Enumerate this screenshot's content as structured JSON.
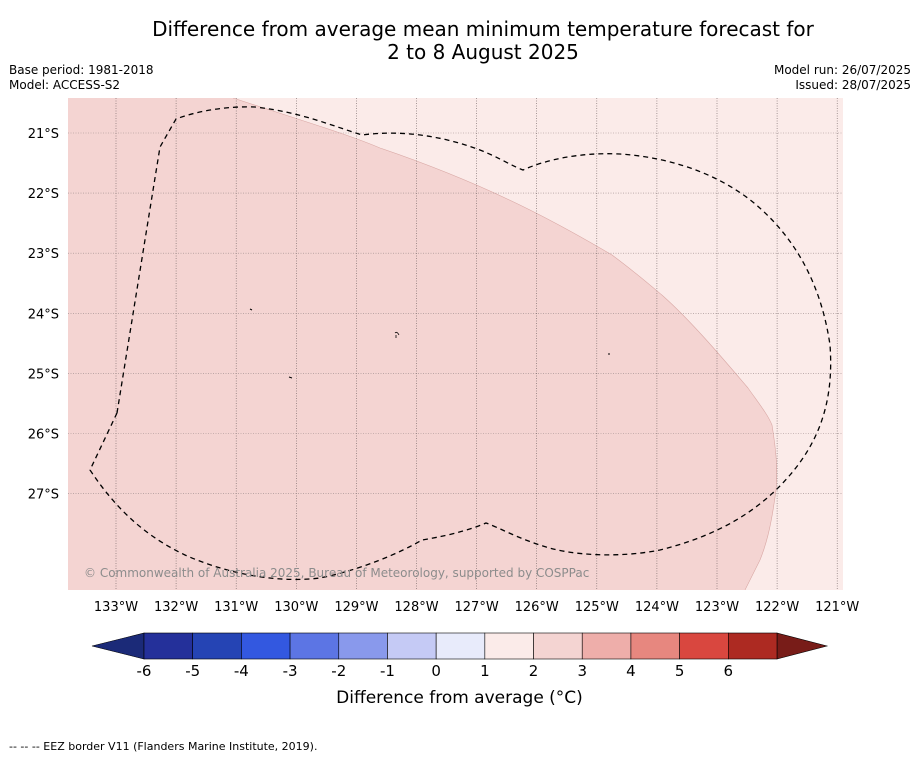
{
  "header": {
    "title_line1": "Difference from average mean minimum temperature forecast for",
    "title_line2": "2 to 8 August 2025",
    "base_period": "Base period: 1981-2018",
    "model": "Model: ACCESS-S2",
    "model_run": "Model run: 26/07/2025",
    "issued": "Issued: 28/07/2025"
  },
  "map": {
    "lat_labels": [
      "21°S",
      "22°S",
      "23°S",
      "24°S",
      "25°S",
      "26°S",
      "27°S"
    ],
    "lon_labels": [
      "133°W",
      "132°W",
      "131°W",
      "130°W",
      "129°W",
      "128°W",
      "127°W",
      "126°W",
      "125°W",
      "124°W",
      "123°W",
      "122°W",
      "121°W"
    ],
    "copyright": "© Commonwealth of Australia 2025, Bureau of Meteorology, supported by COSPPac",
    "colors": {
      "anomaly_0_1": "#fbebe9",
      "anomaly_1_2": "#f4d4d2",
      "eez_border": "#000000"
    }
  },
  "colorbar": {
    "ticks": [
      "-6",
      "-5",
      "-4",
      "-3",
      "-2",
      "-1",
      "0",
      "1",
      "2",
      "3",
      "4",
      "5",
      "6"
    ],
    "colors": [
      "#24309a",
      "#2544b4",
      "#3358e0",
      "#5c75e4",
      "#8999ec",
      "#c5caf5",
      "#e8ebfb",
      "#fbebe9",
      "#f4d4d2",
      "#eeaeaa",
      "#e7877f",
      "#d9473f",
      "#ad2a22"
    ],
    "under_color": "#1b2a78",
    "over_color": "#781c18",
    "label": "Difference from average (°C)"
  },
  "footnote": "--  --  -- EEZ border V11 (Flanders Marine Institute, 2019)."
}
